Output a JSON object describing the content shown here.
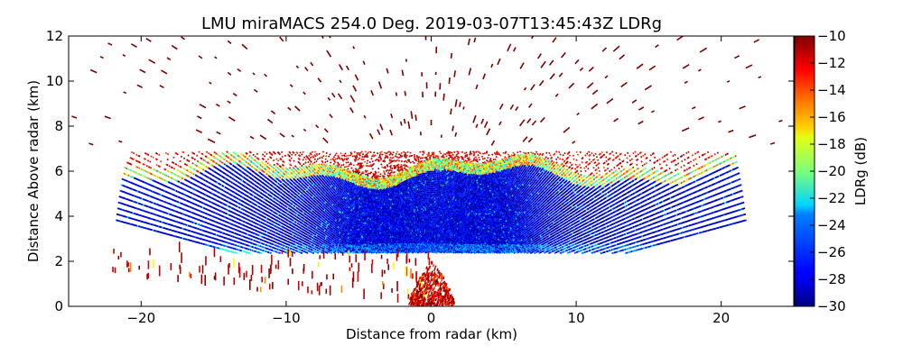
{
  "chart_data": {
    "type": "heatmap",
    "title": "LMU miraMACS 254.0 Deg. 2019-03-07T13:45:43Z  LDRg",
    "xlabel": "Distance from radar (km)",
    "ylabel": "Distance Above radar  (km)",
    "xlim": [
      -25,
      25
    ],
    "ylim": [
      0,
      12
    ],
    "xticks": [
      -20,
      -10,
      0,
      10,
      20
    ],
    "xtick_labels": [
      "−20",
      "−10",
      "0",
      "10",
      "20"
    ],
    "yticks": [
      0,
      2,
      4,
      6,
      8,
      10,
      12
    ],
    "ytick_labels": [
      "0",
      "2",
      "4",
      "6",
      "8",
      "10",
      "12"
    ],
    "colorbar": {
      "label": "LDRg (dB)",
      "range": [
        -30,
        -10
      ],
      "ticks": [
        -30,
        -28,
        -26,
        -24,
        -22,
        -20,
        -18,
        -16,
        -14,
        -12,
        -10
      ],
      "tick_labels": [
        "−30",
        "−28",
        "−26",
        "−24",
        "−22",
        "−20",
        "−18",
        "−16",
        "−14",
        "−12",
        "−10"
      ],
      "colormap": "jet"
    },
    "scan": {
      "elevation_from_horizontal_deg": 10,
      "max_range_km": 22,
      "cloud_layer": {
        "base_km": 2.5,
        "top_km": 6.5,
        "typical_ldr_db": -28,
        "edge_ldr_db": -18
      },
      "bright_band": {
        "height_at_left_km": 2.9,
        "height_at_right_km": 1.9,
        "ldr_db": -22
      },
      "near_surface_clutter": {
        "x_km": 0,
        "height_km": 1.2,
        "ldr_db": -10
      },
      "noise_ldr_db": -10
    },
    "grid": false
  }
}
